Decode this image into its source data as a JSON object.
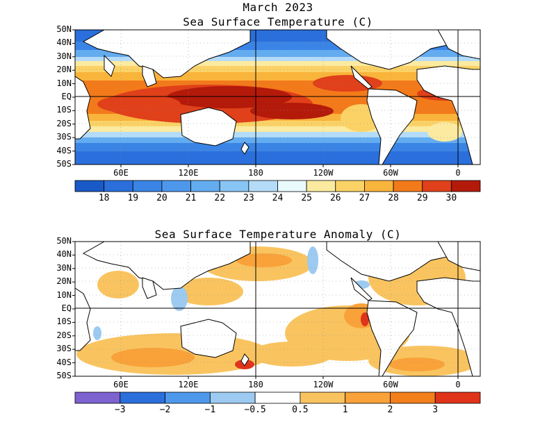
{
  "top": {
    "title_line1": "March 2023",
    "title_line2": "Sea Surface Temperature (C)",
    "colorbar": {
      "colors": [
        "#1a5ac8",
        "#2a6fdc",
        "#3a84e6",
        "#4e98ec",
        "#63acf0",
        "#88c4f4",
        "#b4dcf8",
        "#e8fafc",
        "#fbeaa0",
        "#fbd266",
        "#f9b43c",
        "#f37a1a",
        "#e0401a",
        "#b41a0a"
      ],
      "labels": [
        "18",
        "19",
        "20",
        "21",
        "22",
        "23",
        "24",
        "25",
        "26",
        "27",
        "28",
        "29",
        "30"
      ]
    }
  },
  "bottom": {
    "title": "Sea Surface Temperature Anomaly (C)",
    "colorbar": {
      "colors": [
        "#7d62d0",
        "#2a6fdc",
        "#4e98ec",
        "#9ccaf0",
        "#ffffff",
        "#f9c460",
        "#f9a23a",
        "#f37f1a",
        "#e0341a"
      ],
      "labels": [
        "−3",
        "−2",
        "−1",
        "−0.5",
        "0.5",
        "1",
        "2",
        "3"
      ]
    }
  },
  "axes": {
    "lat_labels": [
      "50N",
      "40N",
      "30N",
      "20N",
      "10N",
      "EQ",
      "10S",
      "20S",
      "30S",
      "40S",
      "50S"
    ],
    "lon_labels": [
      "60E",
      "120E",
      "180",
      "120W",
      "60W",
      "0"
    ]
  }
}
